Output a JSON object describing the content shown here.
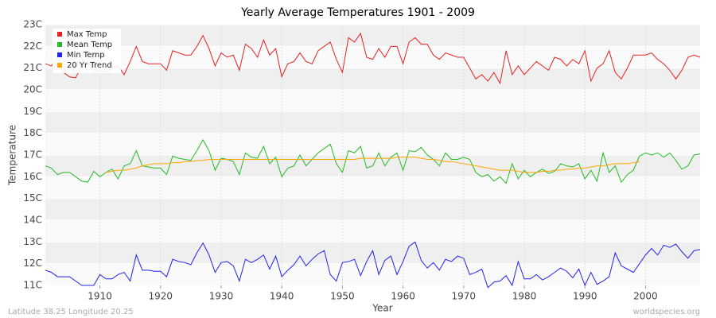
{
  "chart_data": {
    "type": "line",
    "title": "Yearly Average Temperatures 1901 - 2009",
    "x_label": "Year",
    "y_label": "Temperature",
    "footer_left": "Latitude 38.25 Longitude 20.25",
    "footer_right": "worldspecies.org",
    "x": [
      1901,
      1902,
      1903,
      1904,
      1905,
      1906,
      1907,
      1908,
      1909,
      1910,
      1911,
      1912,
      1913,
      1914,
      1915,
      1916,
      1917,
      1918,
      1919,
      1920,
      1921,
      1922,
      1923,
      1924,
      1925,
      1926,
      1927,
      1928,
      1929,
      1930,
      1931,
      1932,
      1933,
      1934,
      1935,
      1936,
      1937,
      1938,
      1939,
      1940,
      1941,
      1942,
      1943,
      1944,
      1945,
      1946,
      1947,
      1948,
      1949,
      1950,
      1951,
      1952,
      1953,
      1954,
      1955,
      1956,
      1957,
      1958,
      1959,
      1960,
      1961,
      1962,
      1963,
      1964,
      1965,
      1966,
      1967,
      1968,
      1969,
      1970,
      1971,
      1972,
      1973,
      1974,
      1975,
      1976,
      1977,
      1978,
      1979,
      1980,
      1981,
      1982,
      1983,
      1984,
      1985,
      1986,
      1987,
      1988,
      1989,
      1990,
      1991,
      1992,
      1993,
      1994,
      1995,
      1996,
      1997,
      1998,
      1999,
      2000,
      2001,
      2002,
      2003,
      2004,
      2005,
      2006,
      2007,
      2008,
      2009
    ],
    "series": [
      {
        "name": "Max Temp",
        "color": "#e82020",
        "values": [
          21.2,
          21.1,
          21.5,
          20.8,
          20.6,
          20.55,
          21.1,
          21.3,
          20.8,
          20.9,
          20.8,
          21.0,
          21.1,
          20.7,
          21.3,
          22.0,
          21.3,
          21.2,
          21.2,
          21.2,
          20.9,
          21.8,
          21.7,
          21.6,
          21.6,
          22.0,
          22.5,
          21.9,
          21.1,
          21.7,
          21.5,
          21.6,
          20.9,
          22.1,
          21.9,
          21.5,
          22.3,
          21.6,
          21.9,
          20.6,
          21.2,
          21.3,
          21.7,
          21.3,
          21.2,
          21.8,
          22.0,
          22.2,
          21.4,
          20.8,
          22.4,
          22.2,
          22.6,
          21.5,
          21.4,
          21.9,
          21.5,
          22.0,
          22.0,
          21.2,
          22.2,
          22.4,
          22.1,
          22.1,
          21.6,
          21.4,
          21.7,
          21.6,
          21.5,
          21.5,
          21.0,
          20.5,
          20.7,
          20.4,
          20.8,
          20.3,
          21.8,
          20.7,
          21.1,
          20.7,
          21.0,
          21.3,
          21.1,
          20.9,
          21.5,
          21.4,
          21.1,
          21.4,
          21.2,
          21.8,
          20.4,
          21.0,
          21.2,
          21.8,
          20.8,
          20.5,
          21.0,
          21.6,
          21.6,
          21.6,
          21.7,
          21.4,
          21.2,
          20.9,
          20.5,
          20.9,
          21.5,
          21.6,
          21.5
        ]
      },
      {
        "name": "Mean Temp",
        "color": "#22bb22",
        "values": [
          16.5,
          16.4,
          16.1,
          16.2,
          16.2,
          16.0,
          15.8,
          15.75,
          16.25,
          16.0,
          16.2,
          16.35,
          15.9,
          16.5,
          16.6,
          17.2,
          16.5,
          16.45,
          16.4,
          16.4,
          16.1,
          16.95,
          16.85,
          16.8,
          16.75,
          17.2,
          17.7,
          17.2,
          16.3,
          16.85,
          16.8,
          16.7,
          16.1,
          17.1,
          16.9,
          16.85,
          17.4,
          16.6,
          16.9,
          16.0,
          16.4,
          16.5,
          17.0,
          16.5,
          16.8,
          17.1,
          17.3,
          17.5,
          16.6,
          16.2,
          17.2,
          17.1,
          17.4,
          16.4,
          16.5,
          17.1,
          16.5,
          16.9,
          17.1,
          16.3,
          17.2,
          17.15,
          17.35,
          17.0,
          16.8,
          16.5,
          17.1,
          16.8,
          16.8,
          16.9,
          16.8,
          16.2,
          16.0,
          16.1,
          15.8,
          16.0,
          15.7,
          16.6,
          15.9,
          16.3,
          16.0,
          16.2,
          16.35,
          16.15,
          16.25,
          16.6,
          16.5,
          16.45,
          16.6,
          15.9,
          16.3,
          15.8,
          17.1,
          16.2,
          16.5,
          15.75,
          16.1,
          16.3,
          16.95,
          17.1,
          17.0,
          17.1,
          16.9,
          17.1,
          16.75,
          16.35,
          16.5,
          17.0,
          17.05
        ]
      },
      {
        "name": "Min Temp",
        "color": "#2222ee",
        "values": [
          11.7,
          11.6,
          11.4,
          11.4,
          11.4,
          11.2,
          11.0,
          11.0,
          11.0,
          11.5,
          11.3,
          11.3,
          11.5,
          11.6,
          11.2,
          12.4,
          11.7,
          11.7,
          11.65,
          11.65,
          11.4,
          12.2,
          12.1,
          12.05,
          11.95,
          12.5,
          12.95,
          12.4,
          11.6,
          12.05,
          12.1,
          11.9,
          11.2,
          12.2,
          12.05,
          12.2,
          12.4,
          11.75,
          12.35,
          11.4,
          11.7,
          11.95,
          12.35,
          11.9,
          12.2,
          12.45,
          12.6,
          11.5,
          11.2,
          12.05,
          12.1,
          12.2,
          11.45,
          12.1,
          12.6,
          11.5,
          12.15,
          12.35,
          11.5,
          12.1,
          12.8,
          13.0,
          12.15,
          11.8,
          12.05,
          11.7,
          12.2,
          12.1,
          12.35,
          12.25,
          11.5,
          11.6,
          11.75,
          10.9,
          11.15,
          11.2,
          11.45,
          11.0,
          12.1,
          11.3,
          11.3,
          11.5,
          11.25,
          11.4,
          11.6,
          11.8,
          11.65,
          11.35,
          11.75,
          11.0,
          11.6,
          11.05,
          11.2,
          11.4,
          12.5,
          11.9,
          11.75,
          11.6,
          12.0,
          12.4,
          12.7,
          12.4,
          12.85,
          12.75,
          12.9,
          12.55,
          12.25,
          12.6,
          12.65
        ]
      },
      {
        "name": "20 Yr Trend",
        "color": "#ffa500",
        "values": [
          null,
          null,
          null,
          null,
          null,
          null,
          null,
          null,
          null,
          null,
          16.2,
          16.25,
          16.3,
          16.3,
          16.35,
          16.4,
          16.5,
          16.55,
          16.6,
          16.6,
          16.6,
          16.65,
          16.65,
          16.7,
          16.7,
          16.75,
          16.75,
          16.8,
          16.8,
          16.8,
          16.8,
          16.8,
          16.8,
          16.8,
          16.8,
          16.8,
          16.8,
          16.8,
          16.8,
          16.8,
          16.8,
          16.8,
          16.8,
          16.8,
          16.8,
          16.8,
          16.8,
          16.8,
          16.8,
          16.8,
          16.8,
          16.8,
          16.85,
          16.85,
          16.85,
          16.85,
          16.85,
          16.85,
          16.9,
          16.9,
          16.9,
          16.9,
          16.85,
          16.8,
          16.8,
          16.75,
          16.7,
          16.7,
          16.65,
          16.6,
          16.55,
          16.5,
          16.45,
          16.4,
          16.35,
          16.3,
          16.3,
          16.3,
          16.25,
          16.2,
          16.2,
          16.2,
          16.25,
          16.25,
          16.3,
          16.3,
          16.35,
          16.35,
          16.4,
          16.4,
          16.45,
          16.5,
          16.5,
          16.55,
          16.6,
          16.6,
          16.6,
          16.65,
          16.7,
          null,
          null,
          null,
          null,
          null,
          null,
          null,
          null,
          null,
          null
        ]
      }
    ],
    "xlim": [
      1901,
      2009
    ],
    "xticks": [
      1910,
      1920,
      1930,
      1940,
      1950,
      1960,
      1970,
      1980,
      1990,
      2000
    ],
    "ylim": [
      11,
      23
    ],
    "yticks": [
      {
        "value": 11,
        "label": "11C"
      },
      {
        "value": 12,
        "label": "12C"
      },
      {
        "value": 13,
        "label": "13C"
      },
      {
        "value": 14,
        "label": "14C"
      },
      {
        "value": 15,
        "label": "15C"
      },
      {
        "value": 16,
        "label": "16C"
      },
      {
        "value": 17,
        "label": "17C"
      },
      {
        "value": 18,
        "label": "18C"
      },
      {
        "value": 19,
        "label": "19C"
      },
      {
        "value": 20,
        "label": "20C"
      },
      {
        "value": 21,
        "label": "21C"
      },
      {
        "value": 22,
        "label": "22C"
      },
      {
        "value": 23,
        "label": "23C"
      }
    ],
    "grid": true,
    "legend": "top-left"
  }
}
